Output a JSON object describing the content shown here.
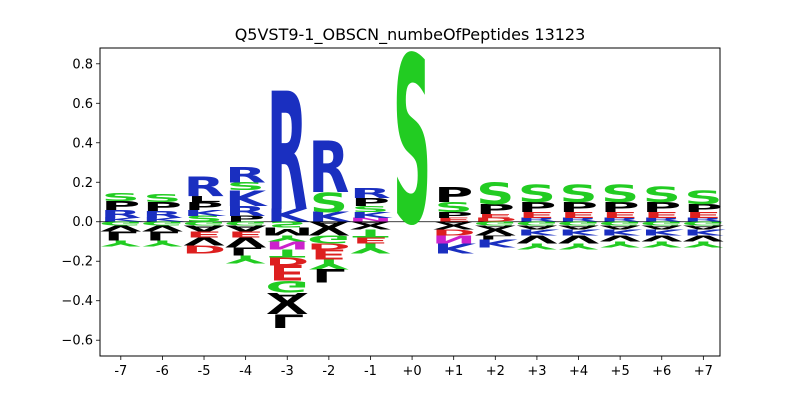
{
  "chart_data": {
    "type": "sequence-logo",
    "title": "Q5VST9-1_OBSCN_numbeOfPeptides 13123",
    "xlabel": "",
    "ylabel": "",
    "ylim": [
      -0.68,
      0.88
    ],
    "yticks": [
      -0.6,
      -0.4,
      -0.2,
      0.0,
      0.2,
      0.4,
      0.6,
      0.8
    ],
    "ytick_labels": [
      "−0.6",
      "−0.4",
      "−0.2",
      "0.0",
      "0.2",
      "0.4",
      "0.6",
      "0.8"
    ],
    "categories": [
      "-7",
      "-6",
      "-5",
      "-4",
      "-3",
      "-2",
      "-1",
      "+0",
      "+1",
      "+2",
      "+3",
      "+4",
      "+5",
      "+6",
      "+7"
    ],
    "colors": {
      "S": "#22cc22",
      "T": "#22cc22",
      "G": "#22cc22",
      "Y": "#22cc22",
      "C": "#22cc22",
      "R": "#1a2fc0",
      "K": "#1a2fc0",
      "H": "#1a2fc0",
      "D": "#dd1f1f",
      "E": "#dd1f1f",
      "N": "#cc22cc",
      "Q": "#cc22cc",
      "P": "#000000",
      "A": "#000000",
      "V": "#000000",
      "L": "#000000",
      "I": "#000000",
      "M": "#000000",
      "F": "#000000",
      "W": "#000000"
    },
    "positions": [
      {
        "label": "-7",
        "above": [
          [
            "K",
            0.02
          ],
          [
            "R",
            0.04
          ],
          [
            "P",
            0.045
          ],
          [
            "S",
            0.04
          ]
        ],
        "below": [
          [
            "G",
            0.02
          ],
          [
            "V",
            0.03
          ],
          [
            "L",
            0.045
          ],
          [
            "Y",
            0.03
          ]
        ]
      },
      {
        "label": "-6",
        "above": [
          [
            "K",
            0.02
          ],
          [
            "R",
            0.035
          ],
          [
            "P",
            0.045
          ],
          [
            "S",
            0.04
          ]
        ],
        "below": [
          [
            "G",
            0.02
          ],
          [
            "V",
            0.03
          ],
          [
            "L",
            0.045
          ],
          [
            "Y",
            0.03
          ]
        ]
      },
      {
        "label": "-5",
        "above": [
          [
            "S",
            0.03
          ],
          [
            "K",
            0.03
          ],
          [
            "P",
            0.04
          ],
          [
            "L",
            0.03
          ],
          [
            "R",
            0.1
          ]
        ],
        "below": [
          [
            "G",
            0.02
          ],
          [
            "A",
            0.03
          ],
          [
            "E",
            0.03
          ],
          [
            "V",
            0.04
          ],
          [
            "D",
            0.04
          ]
        ]
      },
      {
        "label": "-4",
        "above": [
          [
            "P",
            0.03
          ],
          [
            "R",
            0.05
          ],
          [
            "K",
            0.08
          ],
          [
            "S",
            0.04
          ],
          [
            "R",
            0.08
          ]
        ],
        "below": [
          [
            "G",
            0.02
          ],
          [
            "A",
            0.03
          ],
          [
            "E",
            0.03
          ],
          [
            "V",
            0.05
          ],
          [
            "L",
            0.04
          ],
          [
            "Y",
            0.04
          ]
        ]
      },
      {
        "label": "-3",
        "above": [
          [
            "K",
            0.065
          ],
          [
            "R",
            0.6
          ]
        ],
        "below": [
          [
            "S",
            0.03
          ],
          [
            "M",
            0.04
          ],
          [
            "Y",
            0.03
          ],
          [
            "N",
            0.04
          ],
          [
            "T",
            0.04
          ],
          [
            "D",
            0.04
          ],
          [
            "E",
            0.08
          ],
          [
            "G",
            0.06
          ],
          [
            "A",
            0.05
          ],
          [
            "V",
            0.06
          ],
          [
            "L",
            0.07
          ]
        ]
      },
      {
        "label": "-2",
        "above": [
          [
            "K",
            0.05
          ],
          [
            "S",
            0.1
          ],
          [
            "R",
            0.26
          ]
        ],
        "below": [
          [
            "A",
            0.03
          ],
          [
            "V",
            0.04
          ],
          [
            "G",
            0.04
          ],
          [
            "D",
            0.03
          ],
          [
            "E",
            0.05
          ],
          [
            "Y",
            0.05
          ],
          [
            "L",
            0.07
          ]
        ]
      },
      {
        "label": "-1",
        "above": [
          [
            "N",
            0.02
          ],
          [
            "K",
            0.03
          ],
          [
            "S",
            0.03
          ],
          [
            "P",
            0.04
          ],
          [
            "R",
            0.05
          ]
        ],
        "below": [
          [
            "A",
            0.02
          ],
          [
            "V",
            0.02
          ],
          [
            "T",
            0.04
          ],
          [
            "E",
            0.03
          ],
          [
            "Y",
            0.05
          ]
        ]
      },
      {
        "label": "+0",
        "above": [
          [
            "S",
            0.85
          ]
        ],
        "below": []
      },
      {
        "label": "+1",
        "above": [
          [
            "E",
            0.02
          ],
          [
            "P",
            0.03
          ],
          [
            "S",
            0.05
          ],
          [
            "P",
            0.075
          ]
        ],
        "below": [
          [
            "A",
            0.02
          ],
          [
            "V",
            0.02
          ],
          [
            "D",
            0.03
          ],
          [
            "N",
            0.04
          ],
          [
            "K",
            0.05
          ]
        ]
      },
      {
        "label": "+2",
        "above": [
          [
            "D",
            0.02
          ],
          [
            "E",
            0.02
          ],
          [
            "P",
            0.05
          ],
          [
            "S",
            0.11
          ]
        ],
        "below": [
          [
            "G",
            0.02
          ],
          [
            "A",
            0.02
          ],
          [
            "V",
            0.03
          ],
          [
            "L",
            0.02
          ],
          [
            "K",
            0.04
          ]
        ]
      },
      {
        "label": "+3",
        "above": [
          [
            "R",
            0.02
          ],
          [
            "E",
            0.03
          ],
          [
            "P",
            0.05
          ],
          [
            "S",
            0.09
          ]
        ],
        "below": [
          [
            "G",
            0.02
          ],
          [
            "A",
            0.02
          ],
          [
            "K",
            0.03
          ],
          [
            "V",
            0.04
          ],
          [
            "Y",
            0.03
          ]
        ]
      },
      {
        "label": "+4",
        "above": [
          [
            "R",
            0.02
          ],
          [
            "E",
            0.03
          ],
          [
            "P",
            0.05
          ],
          [
            "S",
            0.09
          ]
        ],
        "below": [
          [
            "G",
            0.02
          ],
          [
            "A",
            0.02
          ],
          [
            "K",
            0.03
          ],
          [
            "V",
            0.04
          ],
          [
            "Y",
            0.03
          ]
        ]
      },
      {
        "label": "+5",
        "above": [
          [
            "R",
            0.02
          ],
          [
            "E",
            0.03
          ],
          [
            "P",
            0.05
          ],
          [
            "S",
            0.09
          ]
        ],
        "below": [
          [
            "G",
            0.02
          ],
          [
            "A",
            0.02
          ],
          [
            "K",
            0.03
          ],
          [
            "V",
            0.03
          ],
          [
            "Y",
            0.03
          ]
        ]
      },
      {
        "label": "+6",
        "above": [
          [
            "R",
            0.02
          ],
          [
            "E",
            0.03
          ],
          [
            "P",
            0.05
          ],
          [
            "S",
            0.08
          ]
        ],
        "below": [
          [
            "G",
            0.02
          ],
          [
            "A",
            0.02
          ],
          [
            "K",
            0.03
          ],
          [
            "V",
            0.03
          ],
          [
            "Y",
            0.03
          ]
        ]
      },
      {
        "label": "+7",
        "above": [
          [
            "R",
            0.02
          ],
          [
            "E",
            0.03
          ],
          [
            "P",
            0.04
          ],
          [
            "S",
            0.07
          ]
        ],
        "below": [
          [
            "G",
            0.02
          ],
          [
            "A",
            0.02
          ],
          [
            "K",
            0.03
          ],
          [
            "V",
            0.03
          ],
          [
            "Y",
            0.03
          ]
        ]
      }
    ]
  }
}
